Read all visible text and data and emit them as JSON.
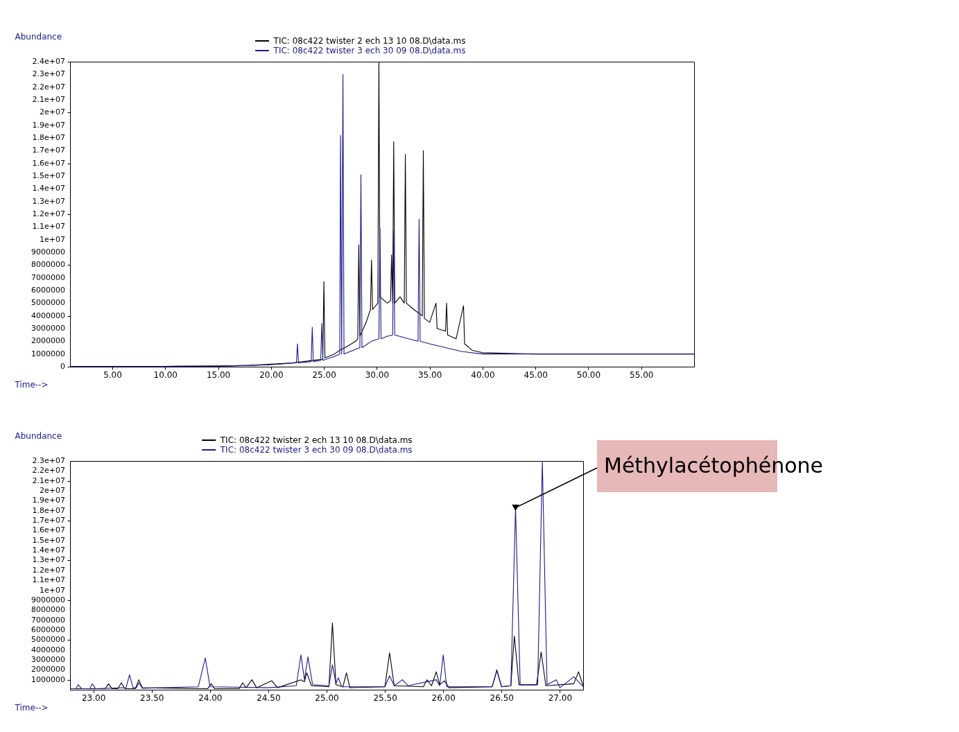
{
  "chart_data": [
    {
      "type": "line",
      "legend": "top",
      "xlabel": "Time-->",
      "ylabel": "Abundance",
      "xlim": [
        1,
        60
      ],
      "ylim": [
        0,
        24000000
      ],
      "xticks": [
        {
          "value": 5,
          "label": "5.00"
        },
        {
          "value": 10,
          "label": "10.00"
        },
        {
          "value": 15,
          "label": "15.00"
        },
        {
          "value": 20,
          "label": "20.00"
        },
        {
          "value": 25,
          "label": "25.00"
        },
        {
          "value": 30,
          "label": "30.00"
        },
        {
          "value": 35,
          "label": "35.00"
        },
        {
          "value": 40,
          "label": "40.00"
        },
        {
          "value": 45,
          "label": "45.00"
        },
        {
          "value": 50,
          "label": "50.00"
        },
        {
          "value": 55,
          "label": "55.00"
        }
      ],
      "yticks": [
        0,
        1000000,
        2000000,
        3000000,
        4000000,
        5000000,
        6000000,
        7000000,
        8000000,
        9000000,
        {
          "value": 10000000,
          "label": "1e+07"
        },
        {
          "value": 11000000,
          "label": "1.1e+07"
        },
        {
          "value": 12000000,
          "label": "1.2e+07"
        },
        {
          "value": 13000000,
          "label": "1.3e+07"
        },
        {
          "value": 14000000,
          "label": "1.4e+07"
        },
        {
          "value": 15000000,
          "label": "1.5e+07"
        },
        {
          "value": 16000000,
          "label": "1.6e+07"
        },
        {
          "value": 17000000,
          "label": "1.7e+07"
        },
        {
          "value": 18000000,
          "label": "1.8e+07"
        },
        {
          "value": 19000000,
          "label": "1.9e+07"
        },
        {
          "value": 20000000,
          "label": "2e+07"
        },
        {
          "value": 21000000,
          "label": "2.1e+07"
        },
        {
          "value": 22000000,
          "label": "2.2e+07"
        },
        {
          "value": 23000000,
          "label": "2.3e+07"
        },
        {
          "value": 24000000,
          "label": "2.4e+07"
        }
      ],
      "series": [
        {
          "name": "TIC: 08c422 twister 2 ech 13 10 08.D\\data.ms",
          "color": "#000000",
          "type": "line",
          "x": [
            1,
            10,
            15,
            18,
            20,
            22,
            24,
            24.9,
            25.0,
            25.1,
            26,
            26.5,
            27,
            28,
            28.2,
            28.3,
            28.4,
            29,
            29.4,
            29.5,
            29.6,
            30.1,
            30.2,
            30.3,
            31,
            31.3,
            31.4,
            31.5,
            31.6,
            31.7,
            32.2,
            32.6,
            32.7,
            32.8,
            33.5,
            34.3,
            34.4,
            34.5,
            35,
            35.6,
            35.7,
            36.5,
            36.6,
            36.7,
            37.5,
            38.2,
            38.3,
            39,
            40,
            45,
            60
          ],
          "values": [
            20000,
            30000,
            50000,
            100000,
            200000,
            300000,
            500000,
            600000,
            6700000,
            700000,
            1000000,
            1300000,
            1500000,
            2000000,
            2200000,
            9600000,
            2400000,
            3500000,
            4500000,
            8400000,
            4500000,
            5000000,
            24000000,
            5500000,
            5000000,
            5200000,
            8800000,
            5000000,
            17700000,
            5000000,
            5500000,
            5000000,
            16700000,
            5000000,
            4500000,
            4000000,
            17000000,
            3800000,
            3500000,
            5000000,
            3000000,
            2800000,
            5000000,
            2500000,
            2200000,
            4800000,
            1800000,
            1300000,
            1100000,
            1000000,
            1000000
          ]
        },
        {
          "name": "TIC: 08c422 twister 3 ech 30 09 08.D\\data.ms",
          "color": "#1a1a8c",
          "type": "line",
          "x": [
            1,
            10,
            15,
            18,
            20,
            22.4,
            22.5,
            22.6,
            23.8,
            23.9,
            24.0,
            24.7,
            24.8,
            24.9,
            26,
            26.5,
            26.57,
            26.68,
            26.8,
            26.9,
            27.5,
            28.4,
            28.5,
            28.6,
            29.5,
            30.2,
            30.3,
            30.4,
            31,
            31.5,
            31.6,
            31.7,
            33,
            33.9,
            34.0,
            34.1,
            35,
            36.5,
            38,
            40,
            45,
            60
          ],
          "values": [
            20000,
            30000,
            50000,
            100000,
            150000,
            300000,
            1800000,
            300000,
            400000,
            3100000,
            400000,
            500000,
            3400000,
            500000,
            800000,
            1000000,
            18200000,
            1000000,
            23000000,
            1000000,
            1200000,
            1500000,
            15100000,
            1500000,
            2000000,
            2200000,
            10900000,
            2200000,
            2400000,
            2500000,
            10700000,
            2500000,
            2200000,
            2000000,
            11600000,
            2000000,
            1800000,
            1500000,
            1200000,
            1000000,
            1000000,
            1000000
          ]
        }
      ]
    },
    {
      "type": "line",
      "legend": "top",
      "xlabel": "Time-->",
      "ylabel": "Abundance",
      "xlim": [
        22.8,
        27.2
      ],
      "ylim": [
        0,
        23000000
      ],
      "xticks": [
        {
          "value": 23,
          "label": "23.00"
        },
        {
          "value": 23.5,
          "label": "23.50"
        },
        {
          "value": 24,
          "label": "24.00"
        },
        {
          "value": 24.5,
          "label": "24.50"
        },
        {
          "value": 25,
          "label": "25.00"
        },
        {
          "value": 25.5,
          "label": "25.50"
        },
        {
          "value": 26,
          "label": "26.00"
        },
        {
          "value": 26.5,
          "label": "26.50"
        },
        {
          "value": 27,
          "label": "27.00"
        }
      ],
      "yticks": [
        1000000,
        2000000,
        3000000,
        4000000,
        5000000,
        6000000,
        7000000,
        8000000,
        9000000,
        {
          "value": 10000000,
          "label": "1e+07"
        },
        {
          "value": 11000000,
          "label": "1.1e+07"
        },
        {
          "value": 12000000,
          "label": "1.2e+07"
        },
        {
          "value": 13000000,
          "label": "1.3e+07"
        },
        {
          "value": 14000000,
          "label": "1.4e+07"
        },
        {
          "value": 15000000,
          "label": "1.5e+07"
        },
        {
          "value": 16000000,
          "label": "1.6e+07"
        },
        {
          "value": 17000000,
          "label": "1.7e+07"
        },
        {
          "value": 18000000,
          "label": "1.8e+07"
        },
        {
          "value": 19000000,
          "label": "1.9e+07"
        },
        {
          "value": 20000000,
          "label": "2e+07"
        },
        {
          "value": 21000000,
          "label": "2.1e+07"
        },
        {
          "value": 22000000,
          "label": "2.2e+07"
        },
        {
          "value": 23000000,
          "label": "2.3e+07"
        }
      ],
      "annotations": [
        {
          "text": "Méthylacétophénone",
          "x": 26.62,
          "y": 18300000
        }
      ],
      "series": [
        {
          "name": "TIC: 08c422 twister 2 ech 13 10 08.D\\data.ms",
          "color": "#000000",
          "type": "line",
          "x": [
            22.8,
            23.1,
            23.13,
            23.16,
            23.21,
            23.24,
            23.27,
            23.36,
            23.39,
            23.42,
            23.98,
            24.01,
            24.04,
            24.25,
            24.28,
            24.31,
            24.36,
            24.4,
            24.53,
            24.58,
            24.78,
            24.81,
            24.83,
            24.87,
            25.02,
            25.05,
            25.08,
            25.14,
            25.17,
            25.2,
            25.5,
            25.54,
            25.58,
            25.83,
            25.86,
            25.9,
            25.94,
            25.97,
            26.01,
            26.05,
            26.42,
            26.46,
            26.5,
            26.58,
            26.61,
            26.65,
            26.8,
            26.84,
            26.88,
            27.12,
            27.16,
            27.2
          ],
          "values": [
            100000,
            100000,
            600000,
            100000,
            100000,
            700000,
            100000,
            100000,
            1000000,
            200000,
            100000,
            600000,
            100000,
            100000,
            700000,
            200000,
            1000000,
            200000,
            900000,
            200000,
            1000000,
            800000,
            1700000,
            400000,
            300000,
            6700000,
            500000,
            300000,
            1700000,
            200000,
            300000,
            3700000,
            400000,
            300000,
            1000000,
            400000,
            1800000,
            500000,
            900000,
            200000,
            300000,
            2000000,
            300000,
            400000,
            5400000,
            500000,
            500000,
            3800000,
            400000,
            600000,
            1800000,
            400000
          ]
        },
        {
          "name": "TIC: 08c422 twister 3 ech 30 09 08.D\\data.ms",
          "color": "#1a1a8c",
          "type": "line",
          "x": [
            22.8,
            22.85,
            22.87,
            22.9,
            22.97,
            22.99,
            23.02,
            23.28,
            23.31,
            23.34,
            23.37,
            23.39,
            23.42,
            23.9,
            23.96,
            24.0,
            24.5,
            24.74,
            24.78,
            24.81,
            24.84,
            24.88,
            25.02,
            25.05,
            25.08,
            25.1,
            25.13,
            25.5,
            25.54,
            25.58,
            25.65,
            25.7,
            25.94,
            25.97,
            26.0,
            26.03,
            26.42,
            26.46,
            26.5,
            26.58,
            26.62,
            26.66,
            26.81,
            26.85,
            26.89,
            26.97,
            27.0,
            27.12,
            27.2
          ],
          "values": [
            100000,
            100000,
            500000,
            100000,
            100000,
            600000,
            100000,
            200000,
            1500000,
            200000,
            200000,
            700000,
            150000,
            300000,
            3200000,
            300000,
            200000,
            400000,
            3500000,
            1000000,
            3300000,
            500000,
            400000,
            2500000,
            600000,
            1200000,
            300000,
            300000,
            1400000,
            400000,
            1000000,
            400000,
            1000000,
            400000,
            3500000,
            300000,
            300000,
            1900000,
            300000,
            400000,
            18300000,
            500000,
            500000,
            23000000,
            500000,
            1000000,
            200000,
            1300000,
            300000
          ]
        }
      ]
    }
  ]
}
